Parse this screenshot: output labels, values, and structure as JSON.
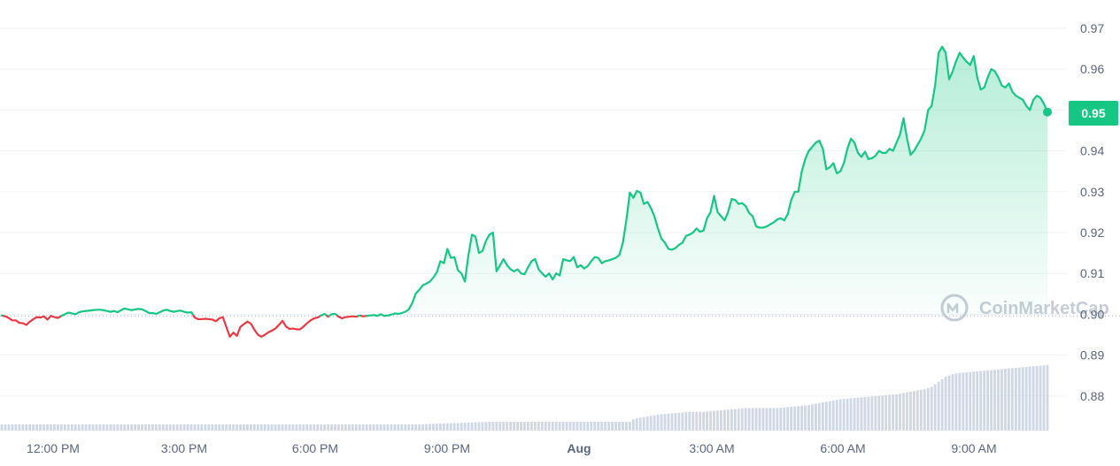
{
  "chart_data": {
    "type": "area",
    "y_axis": {
      "ticks": [
        "0.97",
        "0.96",
        "0.95",
        "0.94",
        "0.93",
        "0.92",
        "0.91",
        "0.90",
        "0.89",
        "0.88"
      ],
      "min": 0.875,
      "max": 0.977
    },
    "x_axis": {
      "ticks": [
        "12:00 PM",
        "3:00 PM",
        "6:00 PM",
        "9:00 PM",
        "Aug",
        "3:00 AM",
        "6:00 AM",
        "9:00 AM"
      ],
      "emphasized_tick": "Aug"
    },
    "baseline": 0.8996,
    "current_price_label": "0.95",
    "watermark": "CoinMarketCap",
    "colors": {
      "up": "#16c784",
      "down": "#ea3943",
      "volume": "#cfd6e4",
      "grid": "#eff2f5",
      "text": "#58667e"
    },
    "series": [
      {
        "values": [
          0.8997,
          0.8995,
          0.8991,
          0.8985,
          0.8985,
          0.8979,
          0.8978,
          0.8974,
          0.8982,
          0.8988,
          0.8993,
          0.8992,
          0.8995,
          0.8987,
          0.8996,
          0.8993,
          0.8991,
          0.8996,
          0.9,
          0.9004,
          0.9002,
          0.9,
          0.9005,
          0.9007,
          0.9008,
          0.9009,
          0.901,
          0.9011,
          0.9011,
          0.901,
          0.9008,
          0.9006,
          0.9008,
          0.9005,
          0.901,
          0.9014,
          0.9012,
          0.901,
          0.9012,
          0.9013,
          0.9012,
          0.9008,
          0.9003,
          0.9003,
          0.9001,
          0.9005,
          0.9009,
          0.9011,
          0.9008,
          0.9006,
          0.9008,
          0.9009,
          0.9006,
          0.9004,
          0.9005,
          0.8992,
          0.8988,
          0.8988,
          0.8989,
          0.8988,
          0.8987,
          0.8983,
          0.899,
          0.8993,
          0.8969,
          0.8945,
          0.8955,
          0.8947,
          0.8969,
          0.8976,
          0.8982,
          0.8977,
          0.8962,
          0.895,
          0.8945,
          0.895,
          0.8956,
          0.896,
          0.8965,
          0.8974,
          0.8984,
          0.897,
          0.8964,
          0.8965,
          0.8963,
          0.8963,
          0.897,
          0.8978,
          0.8985,
          0.899,
          0.8992,
          0.8997,
          0.9001,
          0.8994,
          0.9,
          0.9001,
          0.8994,
          0.899,
          0.8993,
          0.8994,
          0.8995,
          0.8994,
          0.8997,
          0.8995,
          0.8996,
          0.8997,
          0.8998,
          0.8996,
          0.9,
          0.8996,
          0.8997,
          0.8999,
          0.9002,
          0.9001,
          0.9003,
          0.9006,
          0.9012,
          0.9028,
          0.9051,
          0.906,
          0.9071,
          0.9075,
          0.908,
          0.909,
          0.9103,
          0.913,
          0.9125,
          0.916,
          0.9138,
          0.914,
          0.9108,
          0.91,
          0.908,
          0.9145,
          0.9195,
          0.919,
          0.915,
          0.9155,
          0.918,
          0.9195,
          0.92,
          0.9105,
          0.912,
          0.9135,
          0.912,
          0.911,
          0.9105,
          0.911,
          0.91,
          0.9098,
          0.9115,
          0.913,
          0.9135,
          0.911,
          0.91,
          0.9092,
          0.91,
          0.9085,
          0.91,
          0.9095,
          0.9135,
          0.9132,
          0.913,
          0.914,
          0.9115,
          0.912,
          0.9112,
          0.9118,
          0.913,
          0.914,
          0.9138,
          0.9125,
          0.913,
          0.9132,
          0.9135,
          0.9138,
          0.9145,
          0.9175,
          0.923,
          0.9298,
          0.9285,
          0.9302,
          0.9298,
          0.927,
          0.9275,
          0.926,
          0.924,
          0.921,
          0.9185,
          0.9175,
          0.916,
          0.9158,
          0.9162,
          0.917,
          0.9175,
          0.9192,
          0.9195,
          0.92,
          0.921,
          0.9202,
          0.9205,
          0.9235,
          0.925,
          0.929,
          0.925,
          0.924,
          0.923,
          0.925,
          0.9282,
          0.928,
          0.927,
          0.9272,
          0.9265,
          0.9248,
          0.924,
          0.9215,
          0.9212,
          0.9212,
          0.9215,
          0.922,
          0.9225,
          0.9232,
          0.9235,
          0.923,
          0.9245,
          0.928,
          0.93,
          0.93,
          0.935,
          0.938,
          0.94,
          0.941,
          0.942,
          0.9425,
          0.9405,
          0.9355,
          0.936,
          0.937,
          0.9345,
          0.935,
          0.937,
          0.9405,
          0.943,
          0.942,
          0.9395,
          0.9385,
          0.9398,
          0.938,
          0.9382,
          0.9388,
          0.94,
          0.9395,
          0.9395,
          0.9405,
          0.94,
          0.942,
          0.944,
          0.948,
          0.943,
          0.939,
          0.94,
          0.9415,
          0.943,
          0.945,
          0.95,
          0.951,
          0.956,
          0.964,
          0.9655,
          0.964,
          0.9575,
          0.9595,
          0.962,
          0.964,
          0.9628,
          0.9618,
          0.961,
          0.9632,
          0.958,
          0.955,
          0.9555,
          0.958,
          0.96,
          0.9595,
          0.958,
          0.956,
          0.9555,
          0.9565,
          0.9545,
          0.9535,
          0.953,
          0.9525,
          0.951,
          0.95,
          0.9525,
          0.9535,
          0.953,
          0.9515,
          0.9495
        ]
      }
    ],
    "volume": [
      1.0,
      1.0,
      1.0,
      1.0,
      1.0,
      1.0,
      1.0,
      1.0,
      1.0,
      1.0,
      1.0,
      1.0,
      1.0,
      1.0,
      1.0,
      1.0,
      1.0,
      1.0,
      1.0,
      1.0,
      1.0,
      1.0,
      1.0,
      1.0,
      1.0,
      1.0,
      1.0,
      1.0,
      1.0,
      1.0,
      1.0,
      1.0,
      1.0,
      1.0,
      1.0,
      1.0,
      1.0,
      1.0,
      1.0,
      1.0,
      1.0,
      1.0,
      1.0,
      1.0,
      1.0,
      1.0,
      1.0,
      1.0,
      1.0,
      1.0,
      1.0,
      1.0,
      1.0,
      1.0,
      1.0,
      1.0,
      1.0,
      1.0,
      1.0,
      1.0,
      1.0,
      1.0,
      1.0,
      1.0,
      1.0,
      1.0,
      1.0,
      1.0,
      1.0,
      1.0,
      1.0,
      1.0,
      1.0,
      1.0,
      1.0,
      1.0,
      1.0,
      1.0,
      1.0,
      1.0,
      1.0,
      1.0,
      1.0,
      1.0,
      1.0,
      1.0,
      1.0,
      1.0,
      1.0,
      1.0,
      1.0,
      1.0,
      1.0,
      1.0,
      1.0,
      1.0,
      1.0,
      1.0,
      1.0,
      1.0,
      1.0,
      1.0,
      1.0,
      1.0,
      1.0,
      1.0,
      1.0,
      1.0,
      1.0,
      1.0,
      1.0,
      1.0,
      1.0,
      1.0,
      1.0,
      1.0,
      1.0,
      1.0,
      1.0,
      1.0,
      1.02,
      1.04,
      1.06,
      1.08,
      1.1,
      1.12,
      1.14,
      1.16,
      1.18,
      1.2,
      1.22,
      1.24,
      1.26,
      1.28,
      1.3,
      1.32,
      1.34,
      1.36,
      1.38,
      1.4,
      1.4,
      1.4,
      1.4,
      1.4,
      1.4,
      1.4,
      1.4,
      1.4,
      1.4,
      1.4,
      1.4,
      1.4,
      1.4,
      1.4,
      1.4,
      1.4,
      1.4,
      1.4,
      1.4,
      1.4,
      1.4,
      1.4,
      1.4,
      1.4,
      1.4,
      1.4,
      1.4,
      1.4,
      1.4,
      1.4,
      1.4,
      1.4,
      1.4,
      1.4,
      1.4,
      1.4,
      1.4,
      1.4,
      1.4,
      1.4,
      1.8,
      1.95,
      2.05,
      2.15,
      2.25,
      2.35,
      2.45,
      2.55,
      2.6,
      2.65,
      2.7,
      2.75,
      2.8,
      2.85,
      2.9,
      2.95,
      3.0,
      3.0,
      3.0,
      3.0,
      3.0,
      3.05,
      3.1,
      3.15,
      3.2,
      3.25,
      3.3,
      3.35,
      3.4,
      3.45,
      3.5,
      3.55,
      3.6,
      3.6,
      3.6,
      3.6,
      3.6,
      3.6,
      3.6,
      3.6,
      3.6,
      3.6,
      3.65,
      3.7,
      3.75,
      3.8,
      3.85,
      3.9,
      3.95,
      4.0,
      4.1,
      4.2,
      4.3,
      4.4,
      4.5,
      4.6,
      4.7,
      4.8,
      4.9,
      5.0,
      5.05,
      5.1,
      5.15,
      5.2,
      5.25,
      5.3,
      5.35,
      5.4,
      5.45,
      5.5,
      5.55,
      5.6,
      5.65,
      5.7,
      5.75,
      5.8,
      5.9,
      6.0,
      6.1,
      6.2,
      6.3,
      6.4,
      6.5,
      6.6,
      6.8,
      7.0,
      7.4,
      7.8,
      8.2,
      8.6,
      8.8,
      9.0,
      9.1,
      9.2,
      9.25,
      9.3,
      9.35,
      9.4,
      9.45,
      9.5,
      9.55,
      9.6,
      9.65,
      9.7,
      9.75,
      9.8,
      9.85,
      9.9,
      9.95,
      10.0,
      10.05,
      10.1,
      10.15,
      10.2,
      10.25,
      10.3,
      10.35,
      10.4,
      10.45
    ]
  }
}
